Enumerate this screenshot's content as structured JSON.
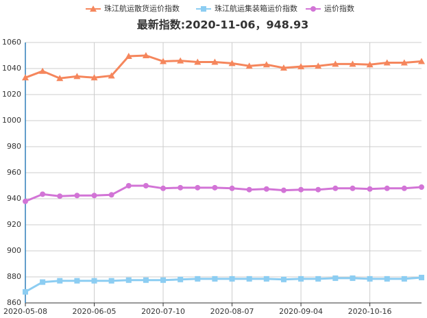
{
  "chart_data": {
    "type": "line",
    "title": "最新指数:2020-11-06，948.93",
    "categories": [
      "2020-05-08",
      null,
      null,
      null,
      "2020-06-05",
      null,
      null,
      null,
      "2020-07-10",
      null,
      null,
      null,
      "2020-08-07",
      null,
      null,
      null,
      "2020-09-04",
      null,
      null,
      null,
      "2020-10-16",
      null,
      null,
      null
    ],
    "series": [
      {
        "name": "珠江航运散货运价指数",
        "color": "#f5865c",
        "marker": "triangle",
        "values": [
          1033,
          1038,
          1032.5,
          1034,
          1033,
          1034.5,
          1049.5,
          1050,
          1045.5,
          1046,
          1045,
          1045,
          1044,
          1042,
          1043,
          1040.5,
          1041.5,
          1042,
          1043.5,
          1043.5,
          1043,
          1044.5,
          1044.5,
          1045.5
        ]
      },
      {
        "name": "珠江航运集装箱运价指数",
        "color": "#8ccdf2",
        "marker": "square",
        "values": [
          868.5,
          876,
          877,
          877,
          877,
          877,
          877.5,
          877.5,
          877.5,
          878,
          878.5,
          878.5,
          878.5,
          878.5,
          878.5,
          878,
          878.5,
          878.5,
          879,
          879,
          878.5,
          878.5,
          878.5,
          879.5
        ]
      },
      {
        "name": "运价指数",
        "color": "#d274d6",
        "marker": "circle",
        "values": [
          938,
          943.5,
          942,
          942.5,
          942.5,
          943,
          950,
          950,
          948,
          948.5,
          948.5,
          948.5,
          948,
          947,
          947.5,
          946.5,
          947,
          947,
          948,
          948,
          947.5,
          948,
          948,
          948.93
        ]
      }
    ],
    "ylim": [
      860,
      1060
    ],
    "yticks": [
      860,
      880,
      900,
      920,
      940,
      960,
      980,
      1000,
      1020,
      1040,
      1060
    ],
    "grid": true,
    "legend": "top"
  }
}
